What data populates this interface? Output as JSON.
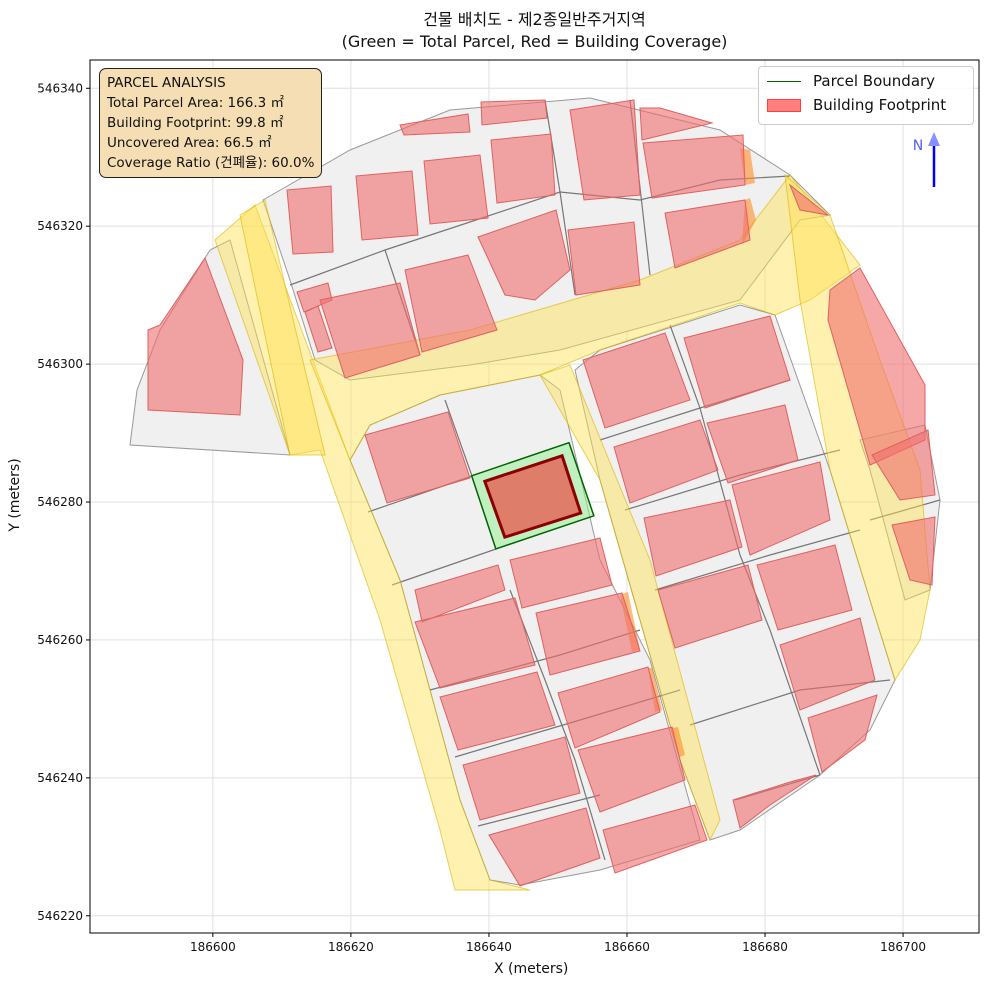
{
  "title": {
    "line1": "건물 배치도 - 제2종일반주거지역",
    "line2": "(Green = Total Parcel, Red = Building Coverage)"
  },
  "info_box": {
    "heading": "PARCEL ANALYSIS",
    "total_area": "Total Parcel Area: 166.3 ㎡",
    "footprint": "Building Footprint: 99.8 ㎡",
    "uncovered": "Uncovered Area: 66.5 ㎡",
    "coverage": "Coverage Ratio (건폐율): 60.0%"
  },
  "legend": {
    "items": [
      "Parcel Boundary",
      "Building Footprint"
    ],
    "placement": "top-right"
  },
  "north_arrow": {
    "label": "N",
    "color": "#0000ff"
  },
  "colors": {
    "parcel_edge": "#006400",
    "parcel_fill": "#90ee90",
    "building_edge": "#8b0000",
    "building_fill": "#e07060",
    "context_building": "#f08080",
    "road": "#ffe680",
    "block": "#f0f0f0"
  },
  "chart_data": {
    "type": "polygon",
    "title": "건물 배치도 - 제2종일반주거지역 (Green = Total Parcel, Red = Building Coverage)",
    "xlabel": "X (meters)",
    "ylabel": "Y (meters)",
    "xlim": [
      186582.2,
      186711.0
    ],
    "ylim": [
      546217.5,
      546344.1
    ],
    "xticks": [
      186600,
      186620,
      186640,
      186660,
      186680,
      186700
    ],
    "yticks": [
      546220,
      546240,
      546260,
      546280,
      546300,
      546320,
      546340
    ],
    "grid": true,
    "parcel": [
      [
        186637.5,
        546283.8
      ],
      [
        186651.6,
        546288.6
      ],
      [
        186655.2,
        546278.0
      ],
      [
        186641.0,
        546273.2
      ]
    ],
    "building": [
      [
        186639.4,
        546283.0
      ],
      [
        186650.6,
        546286.7
      ],
      [
        186653.3,
        546278.4
      ],
      [
        186642.3,
        546274.9
      ]
    ],
    "parcel_area_m2": 166.3,
    "building_footprint_m2": 99.8,
    "uncovered_area_m2": 66.5,
    "coverage_ratio_pct": 60.0
  }
}
